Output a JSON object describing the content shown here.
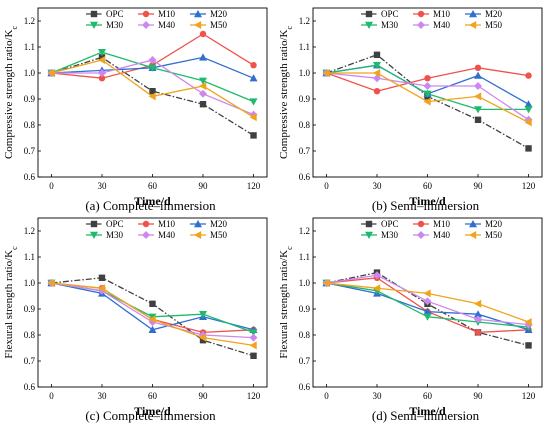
{
  "chart_data": [
    {
      "type": "line",
      "caption": "(a) Complete–immersion",
      "xlabel": "Time/d",
      "ylabel": "Compressive strength ratio/K",
      "ylabel_sub": "c",
      "xlim": [
        -8,
        128
      ],
      "ylim": [
        0.6,
        1.25
      ],
      "x": [
        0,
        30,
        60,
        90,
        120
      ],
      "xticks": [
        0,
        30,
        60,
        90,
        120
      ],
      "yticks": [
        0.6,
        0.7,
        0.8,
        0.9,
        1.0,
        1.1,
        1.2
      ],
      "legend": "top",
      "grid": false,
      "series": [
        {
          "name": "OPC",
          "values": [
            1.0,
            1.06,
            0.93,
            0.88,
            0.76
          ]
        },
        {
          "name": "M10",
          "values": [
            1.0,
            0.98,
            1.03,
            1.15,
            1.03
          ]
        },
        {
          "name": "M20",
          "values": [
            1.0,
            1.01,
            1.02,
            1.06,
            0.98
          ]
        },
        {
          "name": "M30",
          "values": [
            1.0,
            1.08,
            1.02,
            0.97,
            0.89
          ]
        },
        {
          "name": "M40",
          "values": [
            1.0,
            1.0,
            1.05,
            0.92,
            0.84
          ]
        },
        {
          "name": "M50",
          "values": [
            1.0,
            1.05,
            0.91,
            0.95,
            0.83
          ]
        }
      ]
    },
    {
      "type": "line",
      "caption": "(b) Semi–immersion",
      "xlabel": "Time/d",
      "ylabel": "Compressive strength ratio/K",
      "ylabel_sub": "c",
      "xlim": [
        -8,
        128
      ],
      "ylim": [
        0.6,
        1.25
      ],
      "x": [
        0,
        30,
        60,
        90,
        120
      ],
      "xticks": [
        0,
        30,
        60,
        90,
        120
      ],
      "yticks": [
        0.6,
        0.7,
        0.8,
        0.9,
        1.0,
        1.1,
        1.2
      ],
      "legend": "top",
      "grid": false,
      "series": [
        {
          "name": "OPC",
          "values": [
            1.0,
            1.07,
            0.91,
            0.82,
            0.71
          ]
        },
        {
          "name": "M10",
          "values": [
            1.0,
            0.93,
            0.98,
            1.02,
            0.99
          ]
        },
        {
          "name": "M20",
          "values": [
            1.0,
            1.03,
            0.92,
            0.99,
            0.88
          ]
        },
        {
          "name": "M30",
          "values": [
            1.0,
            1.03,
            0.92,
            0.86,
            0.86
          ]
        },
        {
          "name": "M40",
          "values": [
            1.0,
            0.98,
            0.95,
            0.95,
            0.82
          ]
        },
        {
          "name": "M50",
          "values": [
            1.0,
            1.0,
            0.89,
            0.91,
            0.81
          ]
        }
      ]
    },
    {
      "type": "line",
      "caption": "(c) Complete–immersion",
      "xlabel": "Time/d",
      "ylabel": "Flexural strength ratio/K",
      "ylabel_sub": "c",
      "xlim": [
        -8,
        128
      ],
      "ylim": [
        0.6,
        1.25
      ],
      "x": [
        0,
        30,
        60,
        90,
        120
      ],
      "xticks": [
        0,
        30,
        60,
        90,
        120
      ],
      "yticks": [
        0.6,
        0.7,
        0.8,
        0.9,
        1.0,
        1.1,
        1.2
      ],
      "legend": "top",
      "grid": false,
      "series": [
        {
          "name": "OPC",
          "values": [
            1.0,
            1.02,
            0.92,
            0.78,
            0.72
          ]
        },
        {
          "name": "M10",
          "values": [
            1.0,
            0.98,
            0.86,
            0.81,
            0.82
          ]
        },
        {
          "name": "M20",
          "values": [
            1.0,
            0.96,
            0.82,
            0.87,
            0.82
          ]
        },
        {
          "name": "M30",
          "values": [
            1.0,
            0.97,
            0.87,
            0.88,
            0.81
          ]
        },
        {
          "name": "M40",
          "values": [
            1.0,
            0.97,
            0.85,
            0.8,
            0.79
          ]
        },
        {
          "name": "M50",
          "values": [
            1.0,
            0.98,
            0.86,
            0.79,
            0.76
          ]
        }
      ]
    },
    {
      "type": "line",
      "caption": "(d) Semi–immersion",
      "xlabel": "Time/d",
      "ylabel": "Flexural strength ratio/K",
      "ylabel_sub": "c",
      "xlim": [
        -8,
        128
      ],
      "ylim": [
        0.6,
        1.25
      ],
      "x": [
        0,
        30,
        60,
        90,
        120
      ],
      "xticks": [
        0,
        30,
        60,
        90,
        120
      ],
      "yticks": [
        0.6,
        0.7,
        0.8,
        0.9,
        1.0,
        1.1,
        1.2
      ],
      "legend": "top",
      "grid": false,
      "series": [
        {
          "name": "OPC",
          "values": [
            1.0,
            1.04,
            0.92,
            0.81,
            0.76
          ]
        },
        {
          "name": "M10",
          "values": [
            1.0,
            1.02,
            0.89,
            0.81,
            0.82
          ]
        },
        {
          "name": "M20",
          "values": [
            1.0,
            0.96,
            0.89,
            0.88,
            0.82
          ]
        },
        {
          "name": "M30",
          "values": [
            1.0,
            0.97,
            0.87,
            0.85,
            0.83
          ]
        },
        {
          "name": "M40",
          "values": [
            1.0,
            1.03,
            0.93,
            0.86,
            0.84
          ]
        },
        {
          "name": "M50",
          "values": [
            1.0,
            0.98,
            0.96,
            0.92,
            0.85
          ]
        }
      ]
    }
  ],
  "styles": {
    "OPC": {
      "color": "#404040",
      "marker": "square",
      "dash": "dashdot"
    },
    "M10": {
      "color": "#f0514a",
      "marker": "circle",
      "dash": "solid"
    },
    "M20": {
      "color": "#2f6fd0",
      "marker": "triangle-up",
      "dash": "solid"
    },
    "M30": {
      "color": "#1fba6b",
      "marker": "triangle-down",
      "dash": "solid"
    },
    "M40": {
      "color": "#cc88ee",
      "marker": "diamond",
      "dash": "solid"
    },
    "M50": {
      "color": "#f0a41e",
      "marker": "triangle-left",
      "dash": "solid"
    }
  }
}
